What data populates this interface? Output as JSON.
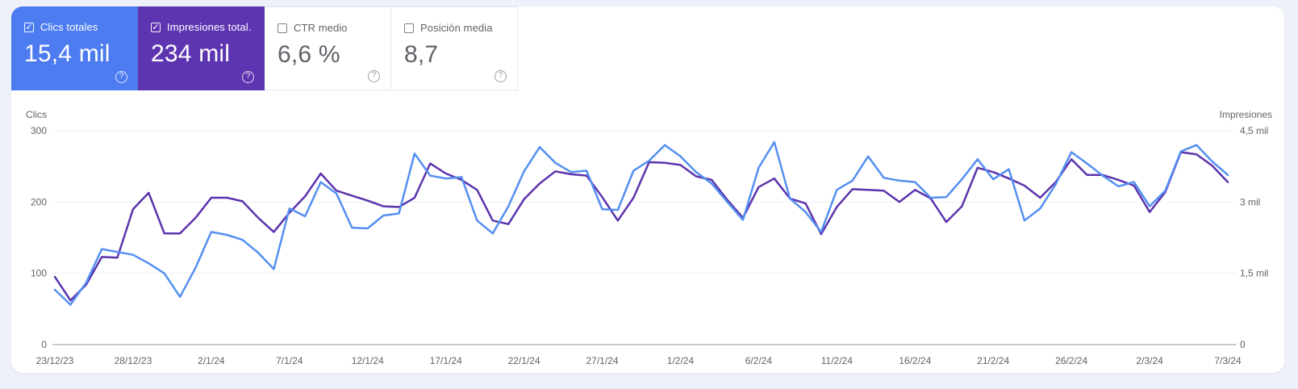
{
  "cards": [
    {
      "label": "Clics totales",
      "value": "15,4 mil",
      "checked": true,
      "check_glyph": "✓",
      "color": "#4d7cf1"
    },
    {
      "label": "Impresiones total…",
      "value": "234 mil",
      "checked": true,
      "check_glyph": "✓",
      "color": "#5e35b1"
    },
    {
      "label": "CTR medio",
      "value": "6,6 %",
      "checked": false,
      "check_glyph": ""
    },
    {
      "label": "Posición media",
      "value": "8,7",
      "checked": false,
      "check_glyph": ""
    }
  ],
  "chart_data": {
    "type": "line",
    "x": [
      "23/12/23",
      "24/12/23",
      "25/12/23",
      "26/12/23",
      "27/12/23",
      "28/12/23",
      "29/12/23",
      "30/12/23",
      "31/12/23",
      "1/1/24",
      "2/1/24",
      "3/1/24",
      "4/1/24",
      "5/1/24",
      "6/1/24",
      "7/1/24",
      "8/1/24",
      "9/1/24",
      "10/1/24",
      "11/1/24",
      "12/1/24",
      "13/1/24",
      "14/1/24",
      "15/1/24",
      "16/1/24",
      "17/1/24",
      "18/1/24",
      "19/1/24",
      "20/1/24",
      "21/1/24",
      "22/1/24",
      "23/1/24",
      "24/1/24",
      "25/1/24",
      "26/1/24",
      "27/1/24",
      "28/1/24",
      "29/1/24",
      "30/1/24",
      "31/1/24",
      "1/2/24",
      "2/2/24",
      "3/2/24",
      "4/2/24",
      "5/2/24",
      "6/2/24",
      "7/2/24",
      "8/2/24",
      "9/2/24",
      "10/2/24",
      "11/2/24",
      "12/2/24",
      "13/2/24",
      "14/2/24",
      "15/2/24",
      "16/2/24",
      "17/2/24",
      "18/2/24",
      "19/2/24",
      "20/2/24",
      "21/2/24",
      "22/2/24",
      "23/2/24",
      "24/2/24",
      "25/2/24",
      "26/2/24",
      "27/2/24",
      "28/2/24",
      "29/2/24",
      "1/3/24",
      "2/3/24",
      "3/3/24",
      "4/3/24",
      "5/3/24",
      "6/3/24",
      "7/3/24"
    ],
    "x_tick_labels": [
      "23/12/23",
      "28/12/23",
      "2/1/24",
      "7/1/24",
      "12/1/24",
      "17/1/24",
      "22/1/24",
      "27/1/24",
      "1/2/24",
      "6/2/24",
      "11/2/24",
      "16/2/24",
      "21/2/24",
      "26/2/24",
      "2/3/24",
      "7/3/24"
    ],
    "series": [
      {
        "name": "Clics",
        "axis": "left",
        "color": "#548ff1",
        "values": [
          77,
          56,
          87,
          134,
          130,
          126,
          114,
          100,
          67,
          108,
          158,
          154,
          147,
          129,
          106,
          191,
          180,
          228,
          212,
          164,
          163,
          181,
          184,
          268,
          237,
          233,
          235,
          174,
          156,
          194,
          243,
          277,
          255,
          242,
          244,
          190,
          189,
          244,
          258,
          280,
          264,
          242,
          226,
          200,
          175,
          248,
          284,
          205,
          186,
          158,
          217,
          230,
          264,
          234,
          230,
          228,
          206,
          207,
          232,
          260,
          232,
          246,
          174,
          191,
          225,
          270,
          254,
          237,
          222,
          228,
          194,
          216,
          271,
          280,
          257,
          238
        ]
      },
      {
        "name": "Impresiones",
        "axis": "right",
        "color": "#5c33ad",
        "values": [
          1425,
          930,
          1260,
          1845,
          1830,
          2850,
          3195,
          2340,
          2340,
          2670,
          3090,
          3090,
          3015,
          2670,
          2370,
          2775,
          3120,
          3600,
          3240,
          3135,
          3030,
          2910,
          2895,
          3090,
          3810,
          3600,
          3465,
          3255,
          2610,
          2535,
          3060,
          3390,
          3645,
          3585,
          3555,
          3105,
          2610,
          3090,
          3840,
          3825,
          3780,
          3540,
          3465,
          3045,
          2670,
          3315,
          3495,
          3075,
          2970,
          2325,
          2895,
          3270,
          3255,
          3240,
          3000,
          3255,
          3075,
          2580,
          2910,
          3720,
          3630,
          3495,
          3345,
          3090,
          3420,
          3900,
          3570,
          3570,
          3465,
          3345,
          2790,
          3210,
          4050,
          4005,
          3765,
          3420
        ]
      }
    ],
    "left_axis": {
      "title": "Clics",
      "ticks": [
        "300",
        "200",
        "100",
        "0"
      ],
      "max": 300,
      "min": 0
    },
    "right_axis": {
      "title": "Impresiones",
      "ticks": [
        "4,5 mil",
        "3 mil",
        "1,5 mil",
        "0"
      ],
      "max": 4500,
      "min": 0
    },
    "grid": "horizontal",
    "legend_position": "none"
  }
}
